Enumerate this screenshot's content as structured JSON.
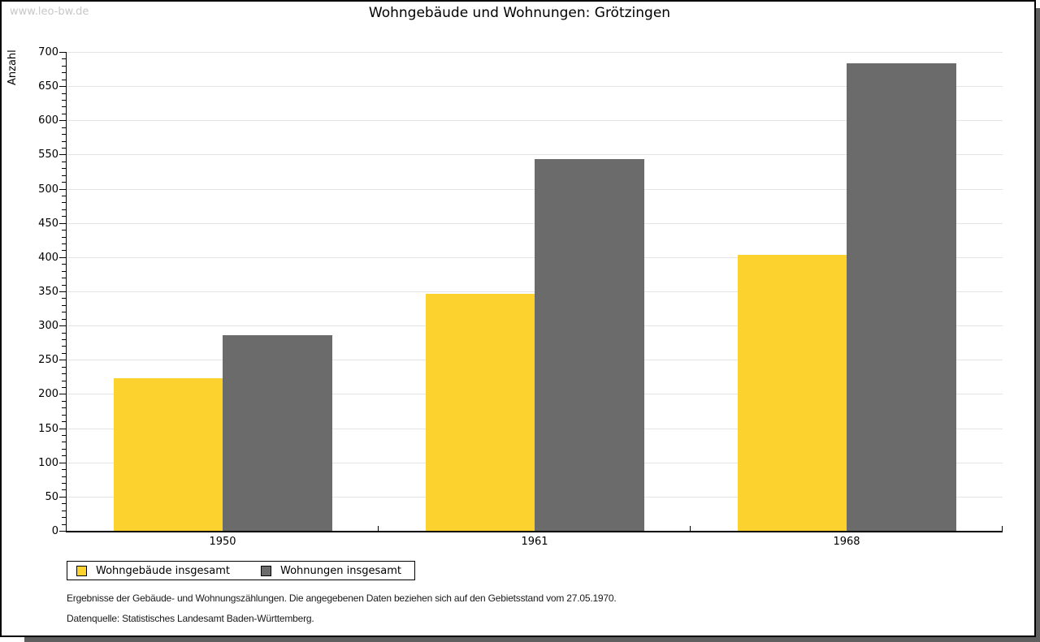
{
  "watermark": "www.leo-bw.de",
  "title": "Wohngebäude und Wohnungen: Grötzingen",
  "y_axis_label": "Anzahl",
  "chart_data": {
    "type": "bar",
    "title": "Wohngebäude und Wohnungen: Grötzingen",
    "categories": [
      "1950",
      "1961",
      "1968"
    ],
    "series": [
      {
        "name": "Wohngebäude insgesamt",
        "color": "#FCD32E",
        "values": [
          223,
          347,
          403
        ]
      },
      {
        "name": "Wohnungen insgesamt",
        "color": "#6B6B6B",
        "values": [
          286,
          543,
          684
        ]
      }
    ],
    "xlabel": "",
    "ylabel": "Anzahl",
    "ylim": [
      0,
      700
    ],
    "y_tick_step": 50,
    "y_minor_tick_step": 10,
    "y_tick_labels": [
      "0",
      "50",
      "100",
      "150",
      "200",
      "250",
      "300",
      "350",
      "400",
      "450",
      "500",
      "550",
      "600",
      "650",
      "700"
    ],
    "grid": true,
    "gridline_color": "#e4e4e4",
    "legend_position": "bottom-left"
  },
  "footnotes": {
    "line1": "Ergebnisse der Gebäude- und Wohnungszählungen. Die angegebenen Daten beziehen sich auf den Gebietsstand vom 27.05.1970.",
    "line2": "Datenquelle: Statistisches Landesamt Baden-Württemberg."
  },
  "colors": {
    "bar_yellow": "#FCD32E",
    "bar_gray": "#6B6B6B",
    "border": "#000000",
    "shadow": "#5f5f5f",
    "watermark": "#c7c7c7",
    "grid": "#e4e4e4"
  }
}
